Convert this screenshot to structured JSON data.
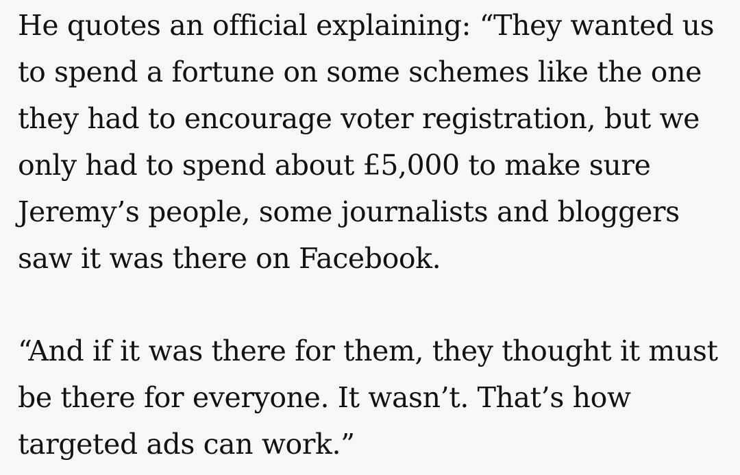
{
  "article": {
    "paragraphs": [
      {
        "lines": [
          "He quotes an official explaining: “They wanted us",
          "to spend a fortune on some schemes like the one",
          "they had to encourage voter registration, but we",
          "only had to spend about £5,000 to make sure",
          "Jeremy’s people, some journalists and bloggers",
          "saw it was there on Facebook."
        ]
      },
      {
        "lines": [
          "“And if it was there for them, they thought it must",
          "be there for everyone. It wasn’t. That’s how",
          "targeted ads can work.”"
        ]
      }
    ]
  },
  "colors": {
    "background": "#f7f7f7",
    "text": "#121212"
  }
}
